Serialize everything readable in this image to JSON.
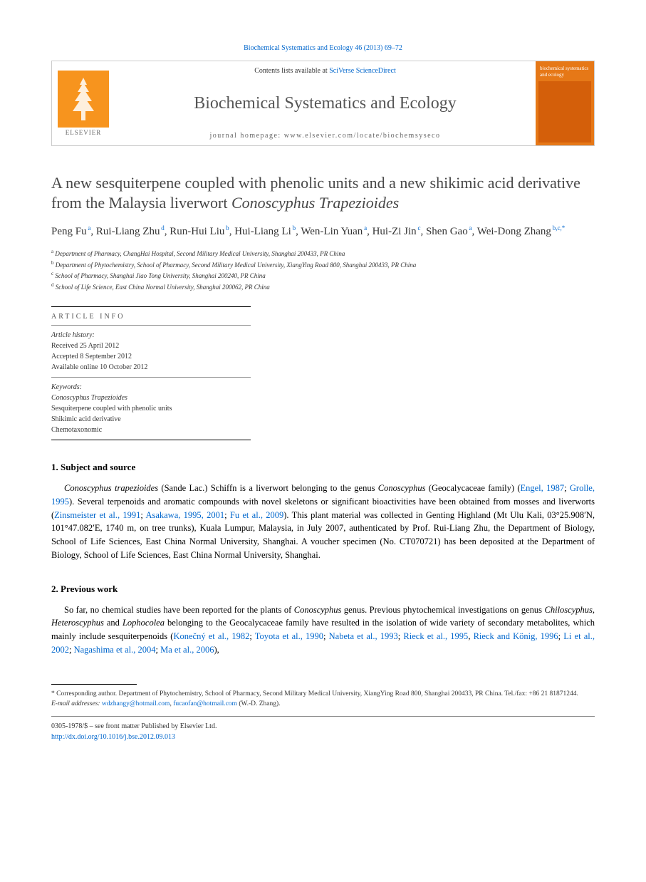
{
  "journal_ref": "Biochemical Systematics and Ecology 46 (2013) 69–72",
  "header": {
    "contents_prefix": "Contents lists available at ",
    "contents_link": "SciVerse ScienceDirect",
    "journal_name": "Biochemical Systematics and Ecology",
    "homepage_prefix": "journal homepage: ",
    "homepage_url": "www.elsevier.com/locate/biochemsyseco",
    "elsevier_label": "ELSEVIER",
    "cover_title": "biochemical systematics and ecology"
  },
  "title_plain": "A new sesquiterpene coupled with phenolic units and a new shikimic acid derivative from the Malaysia liverwort ",
  "title_italic": "Conoscyphus Trapezioides",
  "authors": [
    {
      "name": "Peng Fu",
      "aff": "a"
    },
    {
      "name": "Rui-Liang Zhu",
      "aff": "d"
    },
    {
      "name": "Run-Hui Liu",
      "aff": "b"
    },
    {
      "name": "Hui-Liang Li",
      "aff": "b"
    },
    {
      "name": "Wen-Lin Yuan",
      "aff": "a"
    },
    {
      "name": "Hui-Zi Jin",
      "aff": "c"
    },
    {
      "name": "Shen Gao",
      "aff": "a"
    },
    {
      "name": "Wei-Dong Zhang",
      "aff": "b,c,*"
    }
  ],
  "affiliations": [
    {
      "sup": "a",
      "text": "Department of Pharmacy, ChangHai Hospital, Second Military Medical University, Shanghai 200433, PR China"
    },
    {
      "sup": "b",
      "text": "Department of Phytochemistry, School of Pharmacy, Second Military Medical University, XiangYing Road 800, Shanghai 200433, PR China"
    },
    {
      "sup": "c",
      "text": "School of Pharmacy, Shanghai Jiao Tong University, Shanghai 200240, PR China"
    },
    {
      "sup": "d",
      "text": "School of Life Science, East China Normal University, Shanghai 200062, PR China"
    }
  ],
  "article_info_label": "ARTICLE INFO",
  "history": {
    "label": "Article history:",
    "received": "Received 25 April 2012",
    "accepted": "Accepted 8 September 2012",
    "online": "Available online 10 October 2012"
  },
  "keywords": {
    "label": "Keywords:",
    "items": [
      "Conoscyphus Trapezioides",
      "Sesquiterpene coupled with phenolic units",
      "Shikimic acid derivative",
      "Chemotaxonomic"
    ]
  },
  "sections": {
    "s1": {
      "heading": "1. Subject and source",
      "body": "<em>Conoscyphus trapezioides</em> (Sande Lac.) Schiffn is a liverwort belonging to the genus <em>Conoscyphus</em> (Geocalycaceae family) (<a>Engel, 1987</a>; <a>Grolle, 1995</a>). Several terpenoids and aromatic compounds with novel skeletons or significant bioactivities have been obtained from mosses and liverworts (<a>Zinsmeister et al., 1991</a>; <a>Asakawa, 1995, 2001</a>; <a>Fu et al., 2009</a>). This plant material was collected in Genting Highland (Mt Ulu Kali, 03°25.908′N, 101°47.082′E, 1740 m, on tree trunks), Kuala Lumpur, Malaysia, in July 2007, authenticated by Prof. Rui-Liang Zhu, the Department of Biology, School of Life Sciences, East China Normal University, Shanghai. A voucher specimen (No. CT070721) has been deposited at the Department of Biology, School of Life Sciences, East China Normal University, Shanghai."
    },
    "s2": {
      "heading": "2. Previous work",
      "body": "So far, no chemical studies have been reported for the plants of <em>Conoscyphus</em> genus. Previous phytochemical investigations on genus <em>Chiloscyphus</em>, <em>Heteroscyphus</em> and <em>Lophocolea</em> belonging to the Geocalycaceae family have resulted in the isolation of wide variety of secondary metabolites, which mainly include sesquiterpenoids (<a>Konečný et al., 1982</a>; <a>Toyota et al., 1990</a>; <a>Nabeta et al., 1993</a>; <a>Rieck et al., 1995</a>, <a>Rieck and König, 1996</a>; <a>Li et al., 2002</a>; <a>Nagashima et al., 2004</a>; <a>Ma et al., 2006</a>),"
    }
  },
  "footnotes": {
    "corr": "* Corresponding author. Department of Phytochemistry, School of Pharmacy, Second Military Medical University, XiangYing Road 800, Shanghai 200433, PR China. Tel./fax: +86 21 81871244.",
    "email_label": "E-mail addresses: ",
    "email1": "wdzhangy@hotmail.com",
    "email_sep": ", ",
    "email2": "fucaofan@hotmail.com",
    "email_suffix": " (W.-D. Zhang)."
  },
  "copyright": {
    "line1": "0305-1978/$ – see front matter Published by Elsevier Ltd.",
    "doi": "http://dx.doi.org/10.1016/j.bse.2012.09.013"
  },
  "colors": {
    "link": "#0066cc",
    "elsevier_orange": "#f7941e",
    "cover_orange": "#e67817",
    "title_gray": "#484848"
  }
}
